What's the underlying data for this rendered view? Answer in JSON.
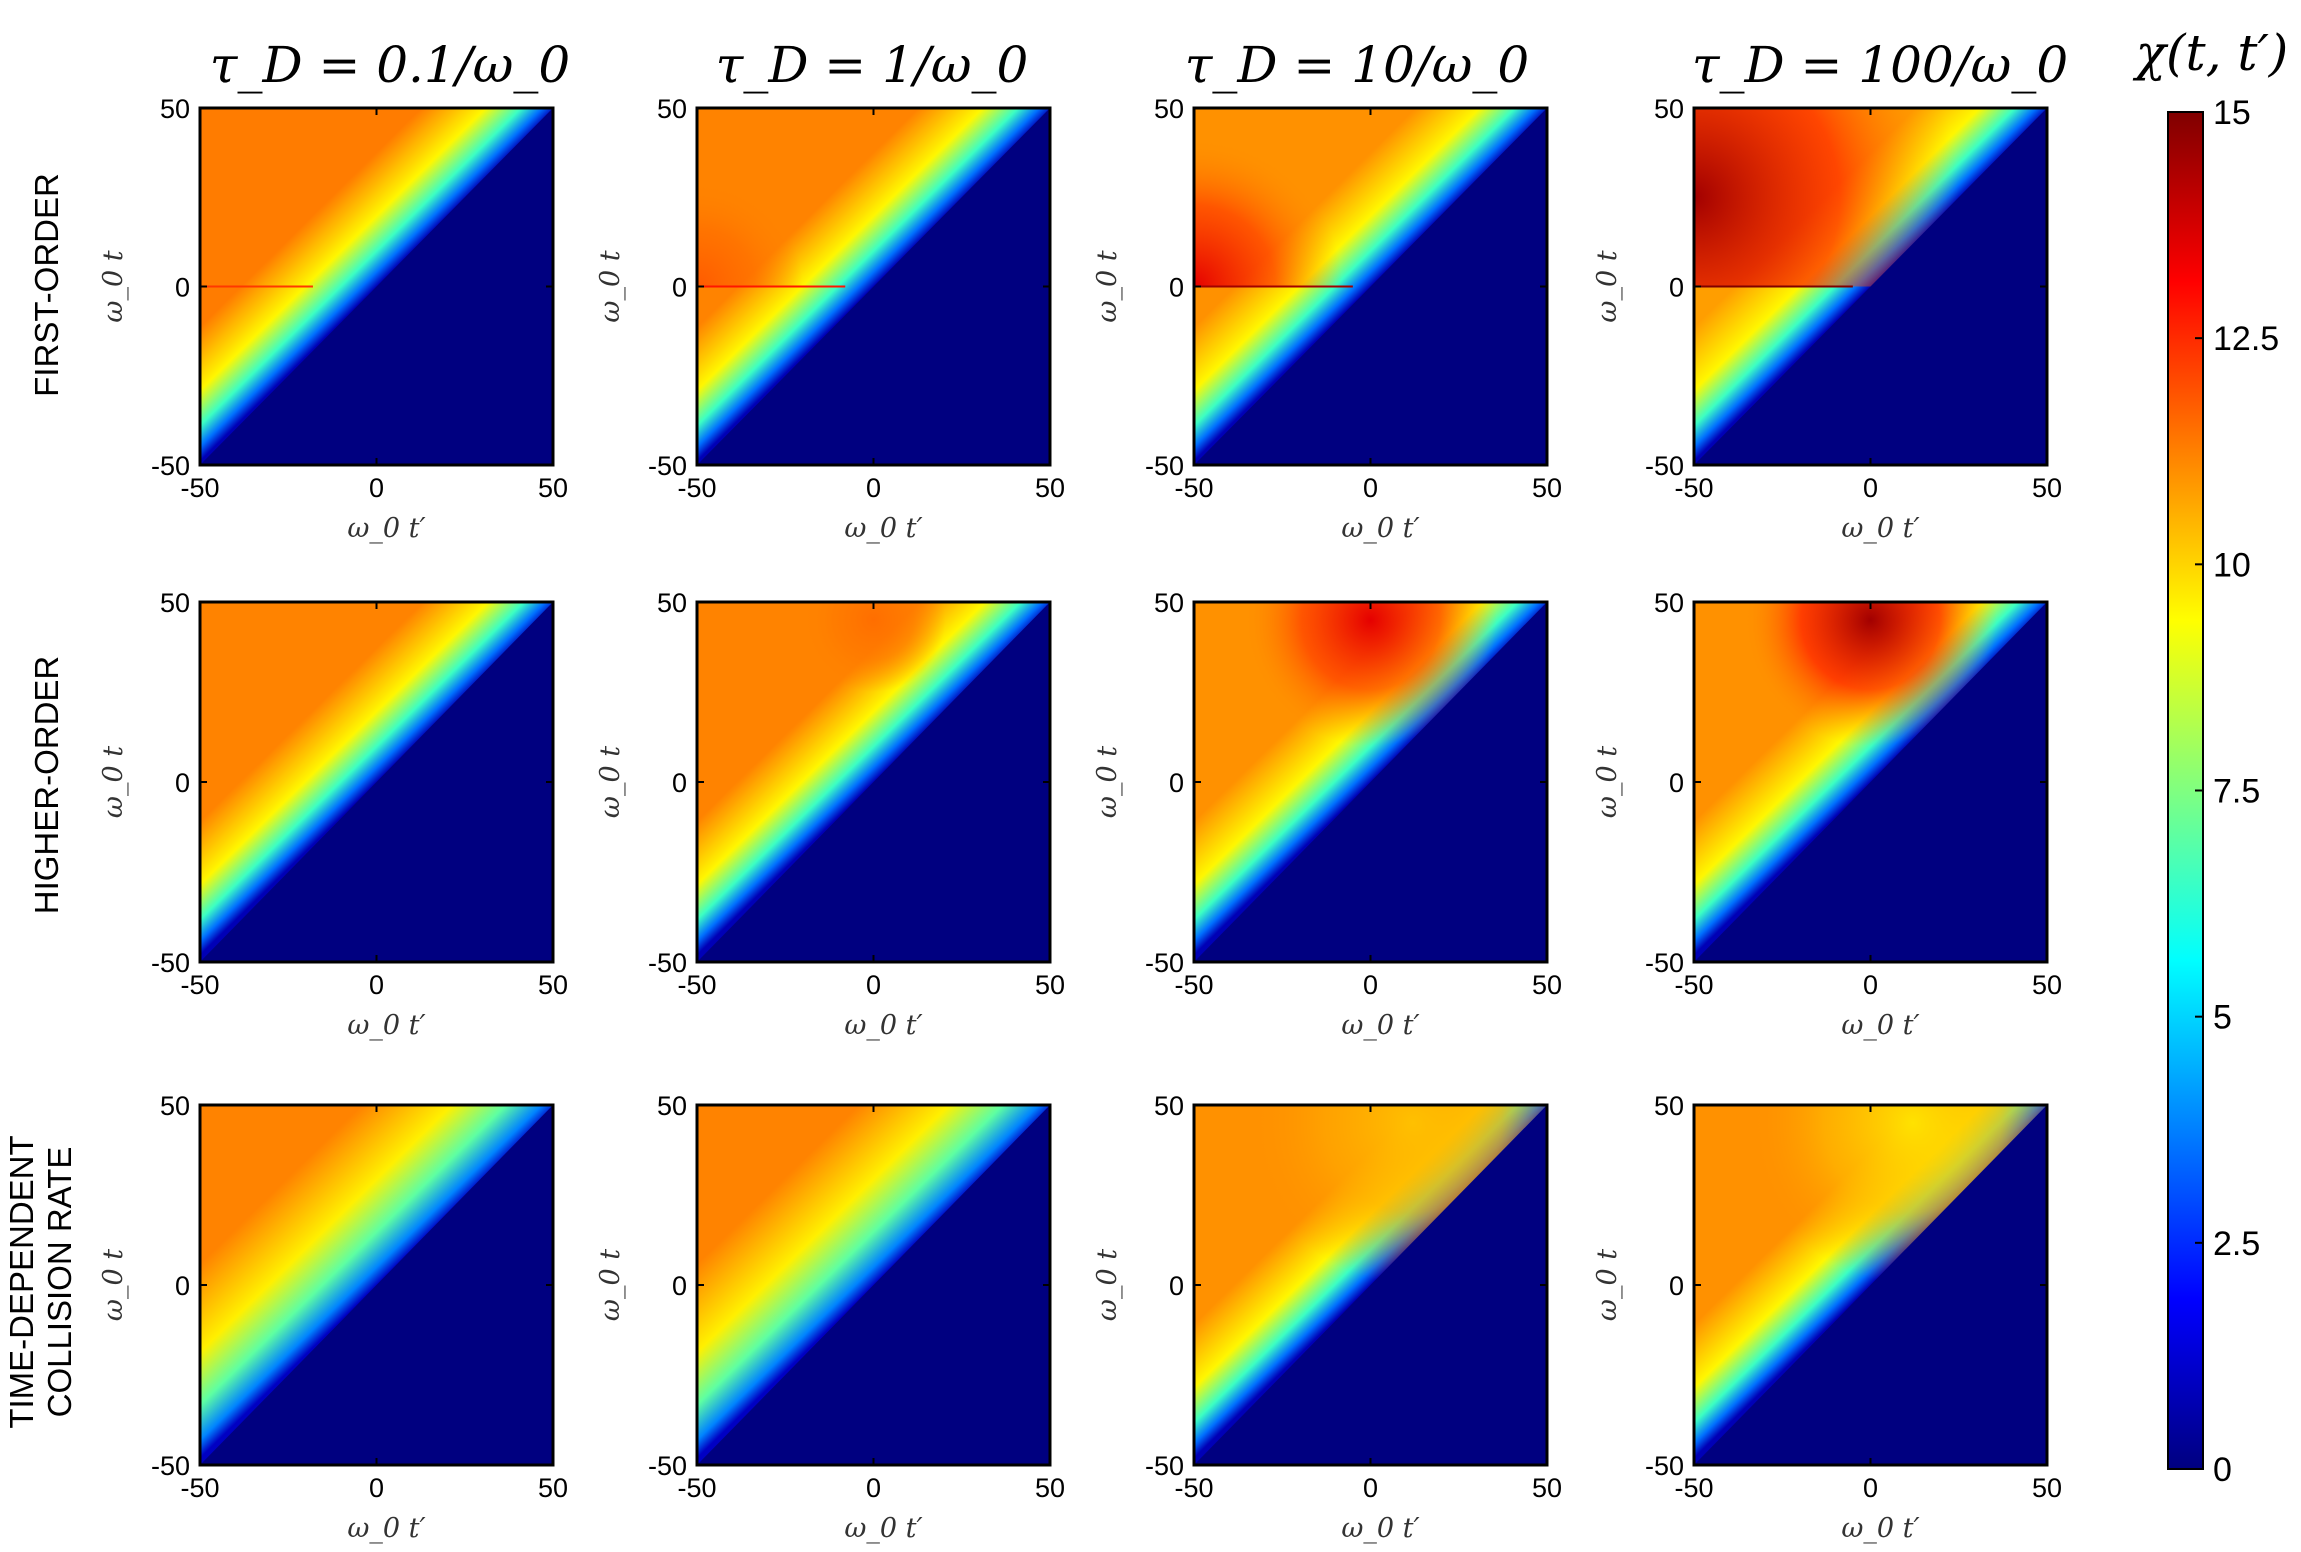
{
  "chart_data": {
    "type": "heatmap",
    "column_titles": [
      "τ_D = 0.1/ω_0",
      "τ_D = 1/ω_0",
      "τ_D = 10/ω_0",
      "τ_D = 100/ω_0"
    ],
    "row_labels": [
      [
        "FIRST-ORDER"
      ],
      [
        "HIGHER-ORDER"
      ],
      [
        "TIME-DEPENDENT",
        "COLLISION RATE"
      ]
    ],
    "xlabel": "ω_0 t′",
    "ylabel": "ω_0 t",
    "xlim": [
      -50,
      50
    ],
    "ylim": [
      -50,
      50
    ],
    "x_ticks": [
      "-50",
      "0",
      "50"
    ],
    "y_ticks": [
      "-50",
      "0",
      "50"
    ],
    "colorbar": {
      "title": "χ(t, t′)",
      "range": [
        0,
        15
      ],
      "ticks": [
        "0",
        "2.5",
        "5",
        "7.5",
        "10",
        "12.5",
        "15"
      ],
      "colormap": "jet"
    },
    "panels": [
      {
        "row": 0,
        "col": 0,
        "fill_value": 11.3,
        "hot_region_value": 11.3,
        "diagonal_edge": "sharp"
      },
      {
        "row": 0,
        "col": 1,
        "fill_value": 11.2,
        "hot_region_value": 11.8,
        "diagonal_edge": "sharp"
      },
      {
        "row": 0,
        "col": 2,
        "fill_value": 11.0,
        "hot_region_value": 13.5,
        "diagonal_edge": "sharp"
      },
      {
        "row": 0,
        "col": 3,
        "fill_value": 10.8,
        "hot_region_value": 14.5,
        "diagonal_edge": "sharp"
      },
      {
        "row": 1,
        "col": 0,
        "fill_value": 11.2,
        "hot_region_value": 11.2,
        "diagonal_edge": "sharp"
      },
      {
        "row": 1,
        "col": 1,
        "fill_value": 11.2,
        "hot_region_value": 11.5,
        "diagonal_edge": "sharp"
      },
      {
        "row": 1,
        "col": 2,
        "fill_value": 11.0,
        "hot_region_value": 13.5,
        "diagonal_edge": "sharp"
      },
      {
        "row": 1,
        "col": 3,
        "fill_value": 11.0,
        "hot_region_value": 14.5,
        "diagonal_edge": "sharp"
      },
      {
        "row": 2,
        "col": 0,
        "fill_value": 11.2,
        "hot_region_value": 11.2,
        "diagonal_edge": "soft"
      },
      {
        "row": 2,
        "col": 1,
        "fill_value": 11.2,
        "hot_region_value": 11.2,
        "diagonal_edge": "soft"
      },
      {
        "row": 2,
        "col": 2,
        "fill_value": 11.0,
        "hot_region_value": 10.3,
        "diagonal_edge": "sharp"
      },
      {
        "row": 2,
        "col": 3,
        "fill_value": 11.0,
        "hot_region_value": 9.8,
        "diagonal_edge": "sharp"
      }
    ]
  }
}
